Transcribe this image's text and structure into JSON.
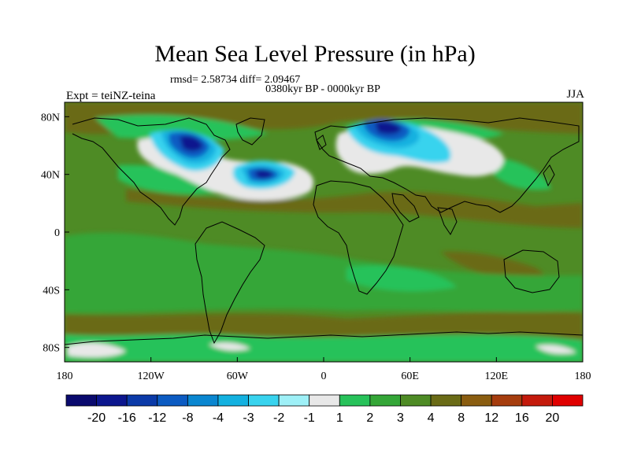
{
  "title": "Mean Sea Level Pressure (in hPa)",
  "stats": "rmsd= 2.58734 diff= 2.09467",
  "period": "0380kyr BP - 0000kyr BP",
  "experiment": "Expt = teiNZ-teina",
  "season": "JJA",
  "x_ticks": [
    "180",
    "120W",
    "60W",
    "0",
    "60E",
    "120E",
    "180"
  ],
  "y_ticks": [
    "80N",
    "40N",
    "0",
    "40S",
    "80S"
  ],
  "colorbar": {
    "labels": [
      "-20",
      "-16",
      "-12",
      "-8",
      "-4",
      "-3",
      "-2",
      "-1",
      "1",
      "2",
      "3",
      "4",
      "8",
      "12",
      "16",
      "20"
    ],
    "colors": [
      "#0a0a6e",
      "#0c168e",
      "#0b3aa8",
      "#0c5bc2",
      "#0a86d0",
      "#13b1e0",
      "#38d3ee",
      "#9ef0f7",
      "#e8e8e8",
      "#27c25a",
      "#34a637",
      "#4e8b25",
      "#6a6b16",
      "#8a5d10",
      "#a63d0e",
      "#c41a0c",
      "#e00000"
    ]
  },
  "field_colors": {
    "background": "#4e8b25",
    "light_green": "#34a637",
    "bright_green": "#27c25a",
    "olive": "#6a6b16",
    "white": "#e8e8e8",
    "cyan": "#38d3ee",
    "sky": "#13b1e0",
    "blue": "#0c5bc2",
    "navy": "#0c168e"
  }
}
